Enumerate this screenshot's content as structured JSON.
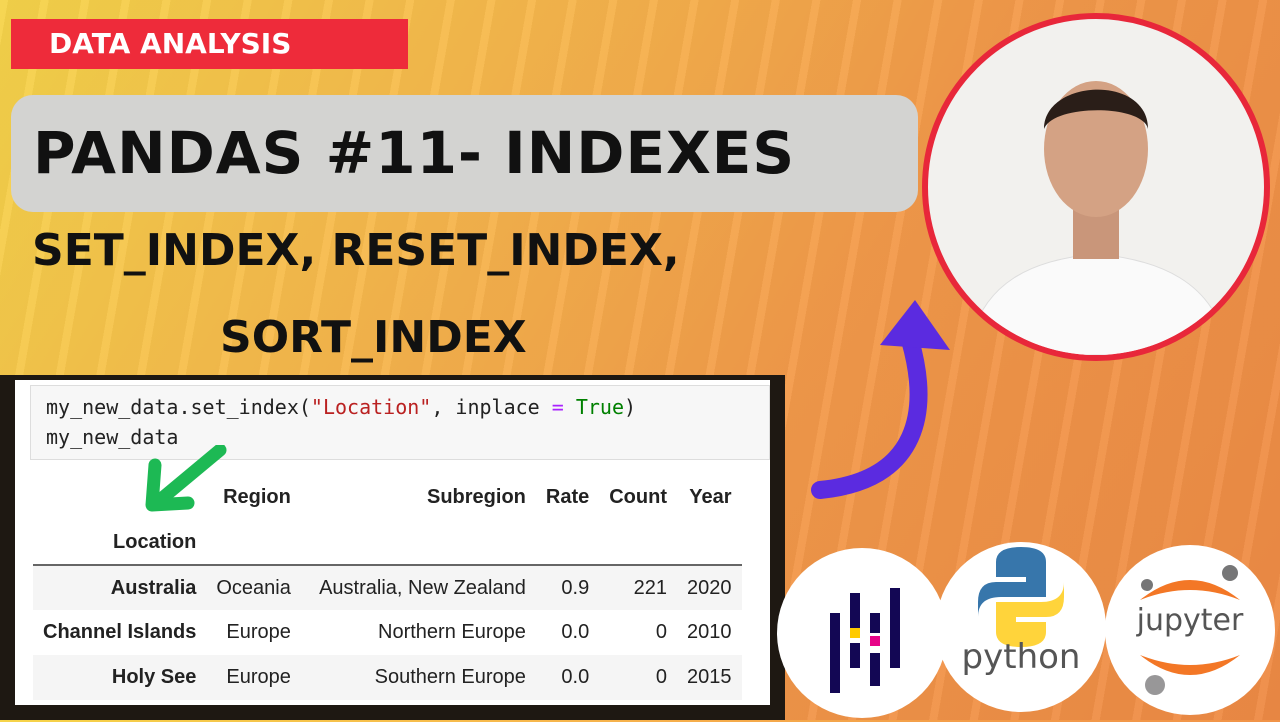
{
  "tag": "DATA ANALYSIS",
  "title": "PANDAS #11-  INDEXES",
  "subtitle_line1": "SET_INDEX, RESET_INDEX,",
  "subtitle_line2": "SORT_INDEX",
  "code": {
    "line1_pre": "my_new_data.set_index(",
    "line1_str": "\"Location\"",
    "line1_mid": ", inplace ",
    "line1_op": "=",
    "line1_kw": " True",
    "line1_post": ")",
    "line2": "my_new_data"
  },
  "table": {
    "index_name": "Location",
    "columns": [
      "Region",
      "Subregion",
      "Rate",
      "Count",
      "Year"
    ],
    "rows": [
      {
        "index": "Australia",
        "values": [
          "Oceania",
          "Australia, New Zealand",
          "0.9",
          "221",
          "2020"
        ]
      },
      {
        "index": "Channel Islands",
        "values": [
          "Europe",
          "Northern Europe",
          "0.0",
          "0",
          "2010"
        ]
      },
      {
        "index": "Holy See",
        "values": [
          "Europe",
          "Southern Europe",
          "0.0",
          "0",
          "2015"
        ]
      }
    ]
  },
  "logos": {
    "python": "python",
    "jupyter": "jupyter"
  },
  "colors": {
    "tag": "#ee2b3a",
    "arrow": "#5b2be0",
    "green_arrow": "#1db954",
    "portrait_border": "#e8273a"
  }
}
